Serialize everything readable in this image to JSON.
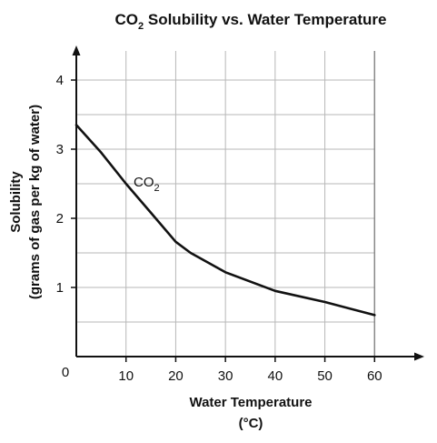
{
  "chart_data": {
    "type": "line",
    "title": {
      "main_a": "CO",
      "main_sub": "2",
      "main_b": " Solubility vs. Water Temperature"
    },
    "xlabel": {
      "line1": "Water Temperature",
      "line2": "(°C)"
    },
    "ylabel": {
      "line1": "Solubility",
      "line2": "(grams of gas per kg of water)"
    },
    "xlim": [
      0,
      70
    ],
    "ylim": [
      0,
      4.5
    ],
    "origin_label": "0",
    "x_ticks": [
      "10",
      "20",
      "30",
      "40",
      "50",
      "60"
    ],
    "y_ticks": [
      "1",
      "2",
      "3",
      "4"
    ],
    "grid": true,
    "series": [
      {
        "label_a": "CO",
        "label_sub": "2",
        "x": [
          0,
          5,
          10,
          15,
          20,
          23,
          30,
          40,
          50,
          60
        ],
        "y": [
          3.35,
          2.95,
          2.5,
          2.08,
          1.66,
          1.5,
          1.22,
          0.95,
          0.79,
          0.6
        ]
      }
    ]
  },
  "colors": {
    "line": "#111111",
    "grid": "#b7b7b7",
    "background": "#ffffff"
  }
}
